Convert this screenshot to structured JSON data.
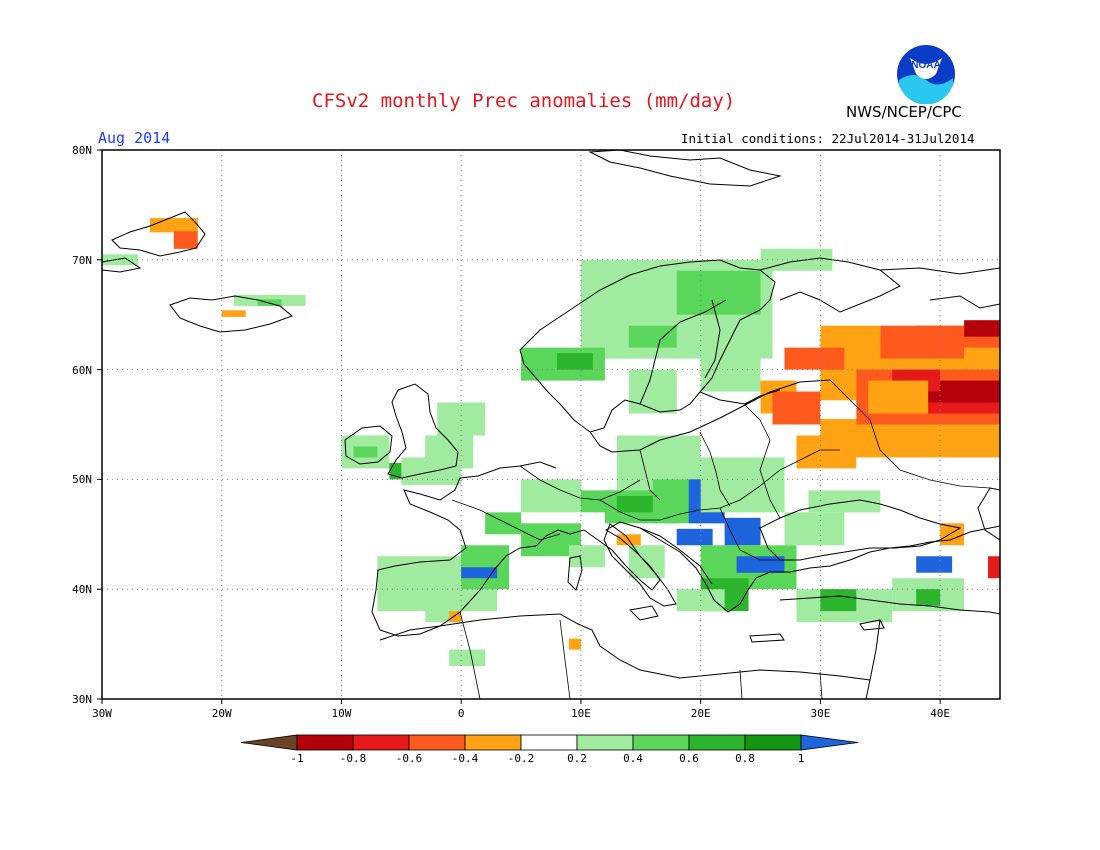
{
  "header": {
    "title": "CFSv2 monthly Prec anomalies (mm/day)",
    "month": "Aug 2014",
    "initial_conditions": "Initial conditions: 22Jul2014-31Jul2014",
    "agency": "NWS/NCEP/CPC",
    "logo_text": "NOAA"
  },
  "axes": {
    "lat_labels": [
      "80N",
      "70N",
      "60N",
      "50N",
      "40N",
      "30N"
    ],
    "lon_labels": [
      "30W",
      "20W",
      "10W",
      "0",
      "10E",
      "20E",
      "30E",
      "40E"
    ],
    "lon_range": [
      -30,
      45
    ],
    "lat_range": [
      30,
      80
    ],
    "grid": true
  },
  "colorbar": {
    "labels": [
      "-1",
      "-0.8",
      "-0.6",
      "-0.4",
      "-0.2",
      "0.2",
      "0.4",
      "0.6",
      "0.8",
      "1"
    ],
    "colors": [
      "#6b4226",
      "#b4000a",
      "#e61a1a",
      "#ff5a1e",
      "#ffa314",
      "#ffffff",
      "#a0eba0",
      "#5ad75a",
      "#2db42d",
      "#129612",
      "#1e64dc"
    ]
  },
  "colors": {
    "title": "#e8141c",
    "month": "#1e3cff",
    "noaa_blue": "#0a3cc8",
    "noaa_cyan": "#28c8f0"
  }
}
